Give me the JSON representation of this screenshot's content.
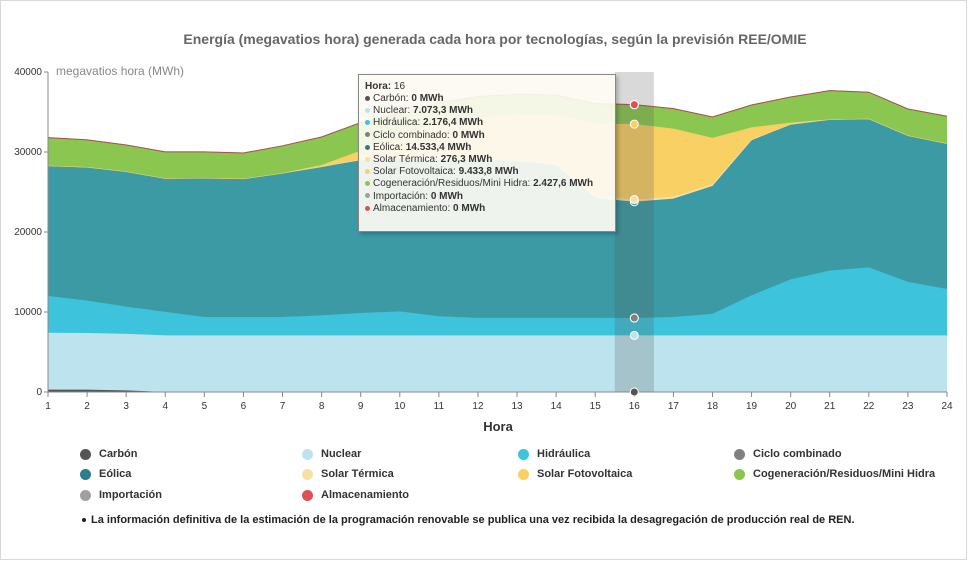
{
  "chart_data": {
    "type": "area",
    "stacked": true,
    "title": "Energía (megavatios hora) generada cada hora por tecnologías, según la previsión REE/OMIE",
    "ylabel": "megavatios hora (MWh)",
    "xlabel": "Hora",
    "ylim": [
      0,
      40000
    ],
    "yticks": [
      0,
      10000,
      20000,
      30000,
      40000
    ],
    "ytick_labels": [
      "0",
      "10000",
      "20000",
      "30000",
      "40000"
    ],
    "x": [
      1,
      2,
      3,
      4,
      5,
      6,
      7,
      8,
      9,
      10,
      11,
      12,
      13,
      14,
      15,
      16,
      17,
      18,
      19,
      20,
      21,
      22,
      23,
      24
    ],
    "grid": false,
    "legend_position": "bottom",
    "series": [
      {
        "name": "Carbón",
        "color": "#555555",
        "values": [
          300,
          300,
          200,
          0,
          0,
          0,
          0,
          0,
          0,
          0,
          0,
          0,
          0,
          0,
          0,
          0,
          0,
          0,
          0,
          0,
          0,
          0,
          0,
          0
        ]
      },
      {
        "name": "Nuclear",
        "color": "#bde3ee",
        "values": [
          7100,
          7073,
          7073,
          7073,
          7073,
          7073,
          7073,
          7073,
          7073,
          7073,
          7073,
          7073,
          7073,
          7073,
          7073,
          7073,
          7073,
          7073,
          7073,
          7073,
          7073,
          7073,
          7073,
          7073
        ]
      },
      {
        "name": "Hidráulica",
        "color": "#3ec3dc",
        "values": [
          4600,
          4050,
          3400,
          2950,
          2300,
          2300,
          2300,
          2500,
          2800,
          3000,
          2400,
          2200,
          2200,
          2200,
          2200,
          2176,
          2300,
          2700,
          5000,
          7000,
          8100,
          8500,
          6700,
          5800
        ]
      },
      {
        "name": "Ciclo combinado",
        "color": "#808080",
        "values": [
          0,
          0,
          0,
          0,
          0,
          0,
          0,
          0,
          0,
          0,
          0,
          0,
          0,
          0,
          0,
          0,
          0,
          0,
          0,
          0,
          0,
          0,
          0,
          0
        ]
      },
      {
        "name": "Eólica",
        "color": "#3c9aa4",
        "values": [
          16300,
          16700,
          16900,
          16700,
          17400,
          17300,
          18000,
          18600,
          19100,
          19100,
          19600,
          19800,
          19600,
          19100,
          15000,
          14533,
          14800,
          16000,
          19400,
          19400,
          18900,
          18600,
          18300,
          18200
        ]
      },
      {
        "name": "Solar Térmica",
        "color": "#f6e0a4",
        "values": [
          0,
          0,
          0,
          0,
          0,
          0,
          0,
          0,
          100,
          200,
          200,
          250,
          250,
          250,
          276,
          276,
          250,
          200,
          100,
          0,
          0,
          0,
          0,
          0
        ]
      },
      {
        "name": "Solar Fotovoltaica",
        "color": "#f9d064",
        "values": [
          0,
          0,
          0,
          0,
          0,
          0,
          0,
          200,
          1100,
          2800,
          4300,
          5000,
          5600,
          6000,
          9000,
          9434,
          8500,
          5800,
          1500,
          200,
          0,
          0,
          0,
          0
        ]
      },
      {
        "name": "Cogeneración/Residuos/Mini Hidra",
        "color": "#8bc750",
        "values": [
          3500,
          3400,
          3300,
          3300,
          3250,
          3200,
          3400,
          3500,
          3500,
          2700,
          2600,
          2600,
          2500,
          2500,
          2500,
          2428,
          2500,
          2600,
          2800,
          3200,
          3600,
          3300,
          3300,
          3400
        ]
      },
      {
        "name": "Importación",
        "color": "#a0a0a0",
        "values": [
          0,
          0,
          0,
          0,
          0,
          0,
          0,
          0,
          0,
          0,
          0,
          0,
          0,
          0,
          0,
          0,
          0,
          0,
          0,
          0,
          0,
          0,
          0,
          0
        ]
      },
      {
        "name": "Almacenamiento",
        "color": "#e05050",
        "values": [
          0,
          0,
          0,
          0,
          0,
          0,
          0,
          0,
          0,
          0,
          0,
          0,
          0,
          0,
          0,
          0,
          0,
          0,
          0,
          0,
          0,
          0,
          0,
          0
        ]
      }
    ],
    "highlight_x": 16
  },
  "tooltip": {
    "head_label": "Hora:",
    "head_value": "16",
    "rows": [
      {
        "label": "Carbón:",
        "value": "0 MWh",
        "color": "#555555"
      },
      {
        "label": "Nuclear:",
        "value": "7.073,3 MWh",
        "color": "#bde3ee"
      },
      {
        "label": "Hidráulica:",
        "value": "2.176,4 MWh",
        "color": "#3ec3dc"
      },
      {
        "label": "Ciclo combinado:",
        "value": "0 MWh",
        "color": "#808080"
      },
      {
        "label": "Eólica:",
        "value": "14.533,4 MWh",
        "color": "#2a7f8a"
      },
      {
        "label": "Solar Térmica:",
        "value": "276,3 MWh",
        "color": "#f6e0a4"
      },
      {
        "label": "Solar Fotovoltaica:",
        "value": "9.433,8 MWh",
        "color": "#f9d064"
      },
      {
        "label": "Cogeneración/Residuos/Mini Hidra:",
        "value": "2.427,6 MWh",
        "color": "#8bc750"
      },
      {
        "label": "Importación:",
        "value": "0 MWh",
        "color": "#a0a0a0"
      },
      {
        "label": "Almacenamiento:",
        "value": "0 MWh",
        "color": "#e05050"
      }
    ]
  },
  "legend": [
    {
      "label": "Carbón",
      "color": "#555555"
    },
    {
      "label": "Nuclear",
      "color": "#bde3ee"
    },
    {
      "label": "Hidráulica",
      "color": "#3ec3dc"
    },
    {
      "label": "Ciclo combinado",
      "color": "#808080"
    },
    {
      "label": "Eólica",
      "color": "#2a7f8a"
    },
    {
      "label": "Solar Térmica",
      "color": "#f6e0a4"
    },
    {
      "label": "Solar Fotovoltaica",
      "color": "#f9d064"
    },
    {
      "label": "Cogeneración/Residuos/Mini Hidra",
      "color": "#8bc750"
    },
    {
      "label": "Importación",
      "color": "#a0a0a0"
    },
    {
      "label": "Almacenamiento",
      "color": "#e05050"
    }
  ],
  "footnote": "La información definitiva de la estimación de la programación renovable se publica una vez recibida la desagregación de producción real de REN."
}
